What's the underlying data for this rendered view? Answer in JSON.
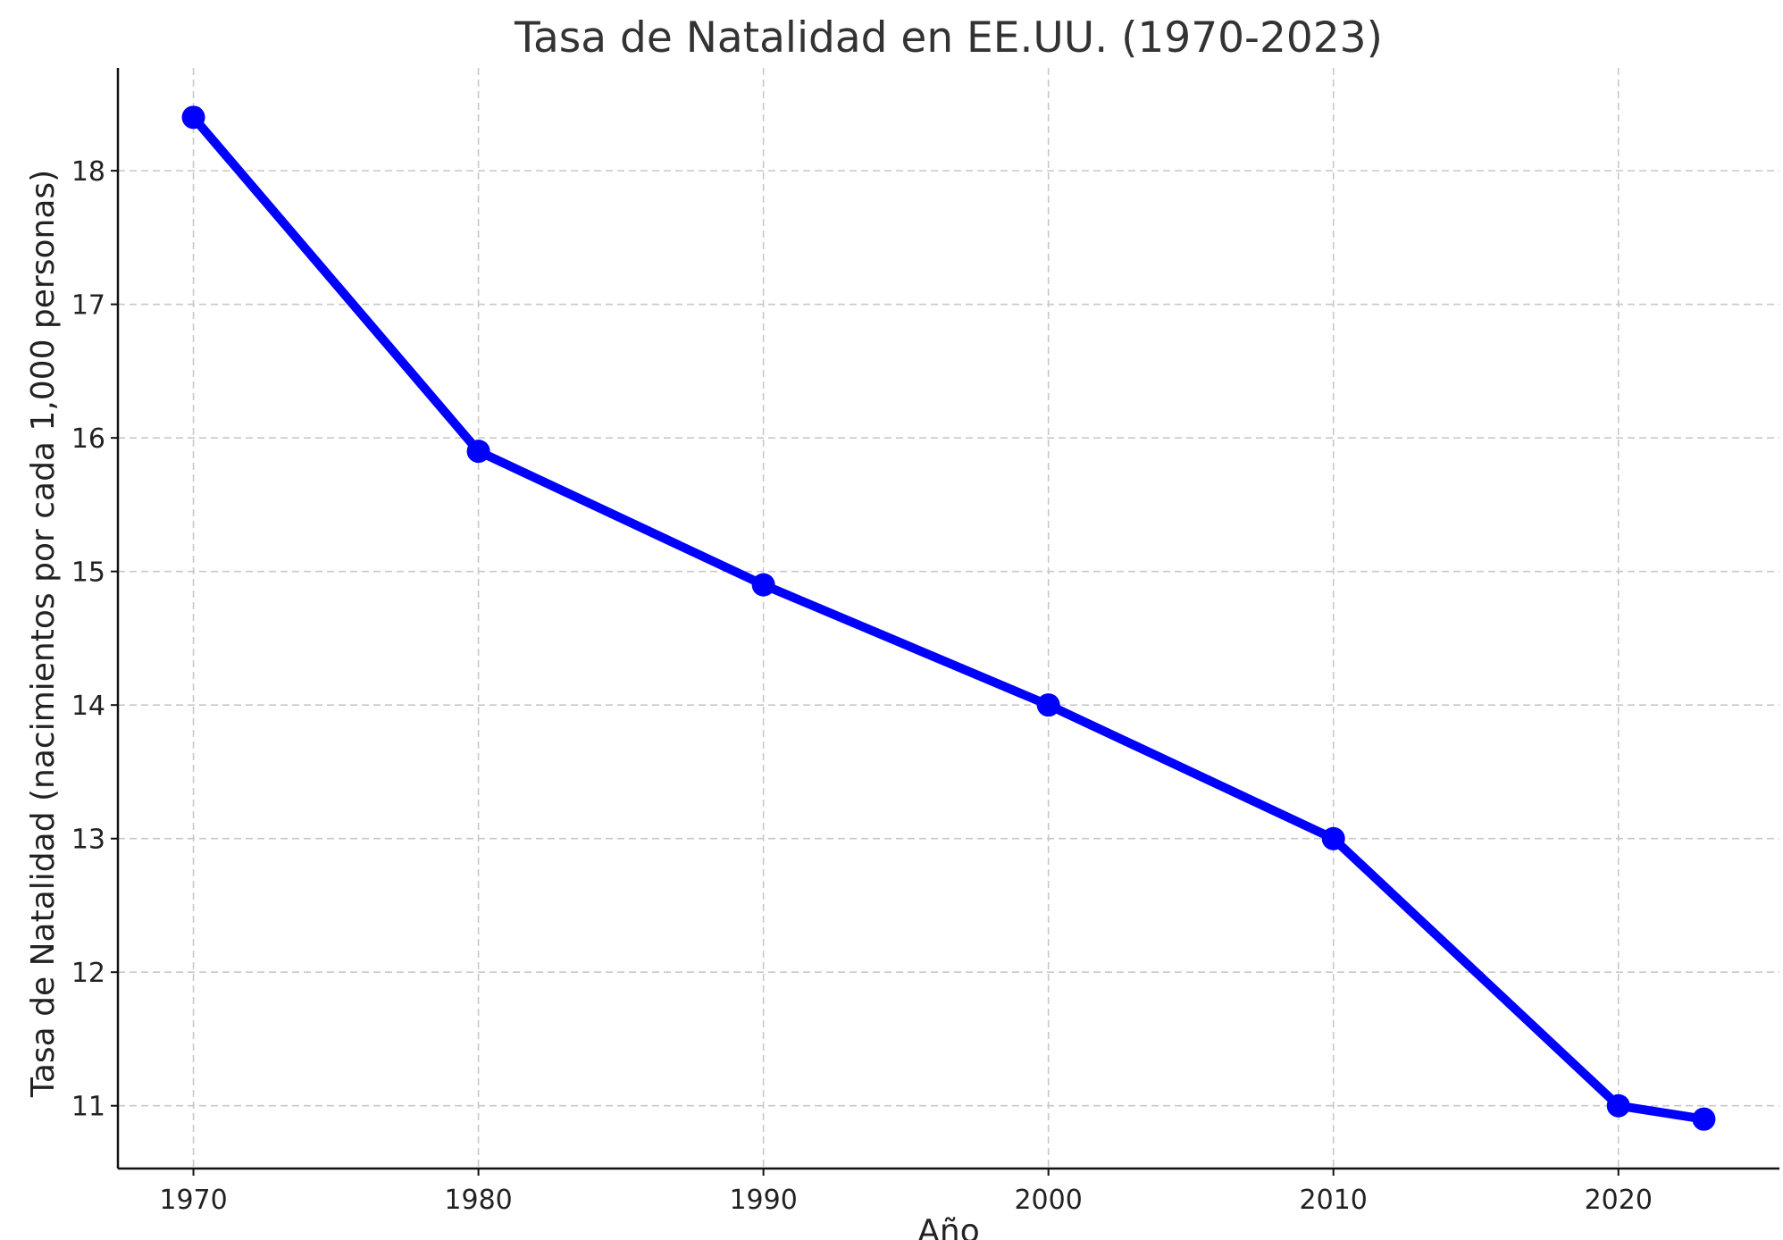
{
  "chart_data": {
    "type": "line",
    "title": "Tasa de Natalidad en EE.UU. (1970-2023)",
    "xlabel": "Año",
    "ylabel": "Tasa de Natalidad (nacimientos por cada 1,000 personas)",
    "x": [
      1970,
      1980,
      1990,
      2000,
      2010,
      2020,
      2023
    ],
    "series": [
      {
        "values": [
          18.4,
          15.9,
          14.9,
          14.0,
          13.0,
          11.0,
          10.9
        ],
        "color": "#0000ff",
        "marker": "circle"
      }
    ],
    "xlim": [
      1967.35,
      2025.65
    ],
    "ylim": [
      10.53,
      18.77
    ],
    "xticks": [
      1970,
      1980,
      1990,
      2000,
      2010,
      2020
    ],
    "yticks": [
      11,
      12,
      13,
      14,
      15,
      16,
      17,
      18
    ],
    "grid": true,
    "legend": "none"
  }
}
